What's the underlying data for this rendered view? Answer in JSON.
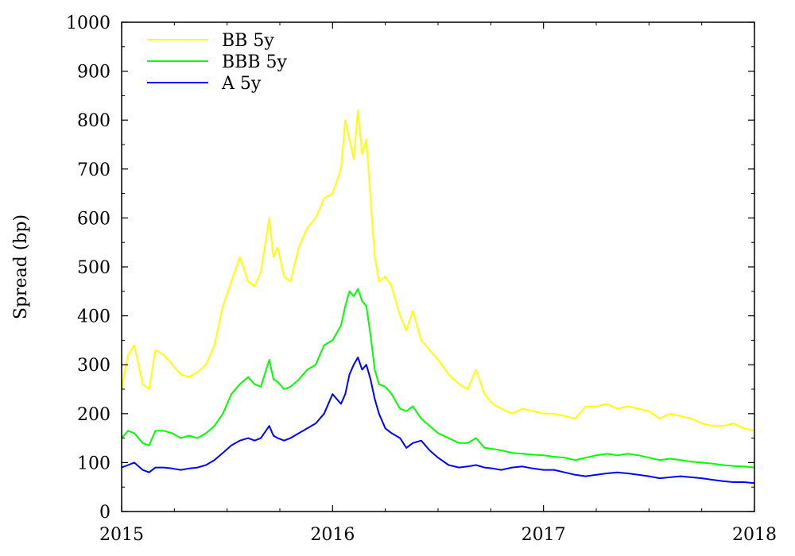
{
  "chart_data": {
    "type": "line",
    "title": "",
    "xlabel": "",
    "ylabel": "Spread (bp)",
    "xlim": [
      2015,
      2018
    ],
    "ylim": [
      0,
      1000
    ],
    "xticks": [
      2015,
      2016,
      2017,
      2018
    ],
    "yticks": [
      0,
      100,
      200,
      300,
      400,
      500,
      600,
      700,
      800,
      900,
      1000
    ],
    "grid": false,
    "legend_position": "top-left",
    "series": [
      {
        "name": "BB 5y",
        "color": "#ffff00",
        "x": [
          2015.0,
          2015.03,
          2015.06,
          2015.1,
          2015.13,
          2015.16,
          2015.2,
          2015.24,
          2015.28,
          2015.32,
          2015.36,
          2015.4,
          2015.44,
          2015.48,
          2015.52,
          2015.56,
          2015.6,
          2015.63,
          2015.66,
          2015.7,
          2015.72,
          2015.74,
          2015.77,
          2015.8,
          2015.84,
          2015.88,
          2015.92,
          2015.96,
          2016.0,
          2016.04,
          2016.06,
          2016.08,
          2016.1,
          2016.12,
          2016.14,
          2016.16,
          2016.18,
          2016.2,
          2016.22,
          2016.25,
          2016.28,
          2016.32,
          2016.35,
          2016.38,
          2016.42,
          2016.46,
          2016.5,
          2016.55,
          2016.6,
          2016.64,
          2016.68,
          2016.72,
          2016.76,
          2016.8,
          2016.85,
          2016.9,
          2016.95,
          2017.0,
          2017.05,
          2017.1,
          2017.15,
          2017.2,
          2017.25,
          2017.3,
          2017.35,
          2017.4,
          2017.45,
          2017.5,
          2017.55,
          2017.6,
          2017.65,
          2017.7,
          2017.75,
          2017.8,
          2017.85,
          2017.9,
          2017.95,
          2018.0
        ],
        "y": [
          250,
          320,
          340,
          260,
          250,
          330,
          320,
          300,
          280,
          275,
          285,
          300,
          340,
          420,
          470,
          520,
          470,
          460,
          490,
          600,
          520,
          540,
          480,
          470,
          540,
          580,
          600,
          640,
          650,
          700,
          800,
          760,
          720,
          820,
          730,
          760,
          640,
          520,
          470,
          480,
          460,
          400,
          370,
          410,
          350,
          330,
          310,
          280,
          260,
          250,
          290,
          240,
          220,
          210,
          200,
          210,
          205,
          200,
          200,
          195,
          190,
          215,
          215,
          220,
          210,
          215,
          210,
          205,
          190,
          200,
          195,
          190,
          180,
          175,
          175,
          180,
          170,
          165
        ]
      },
      {
        "name": "BBB 5y",
        "color": "#00ff00",
        "x": [
          2015.0,
          2015.03,
          2015.06,
          2015.1,
          2015.13,
          2015.16,
          2015.2,
          2015.24,
          2015.28,
          2015.32,
          2015.36,
          2015.4,
          2015.44,
          2015.48,
          2015.52,
          2015.56,
          2015.6,
          2015.63,
          2015.66,
          2015.7,
          2015.72,
          2015.74,
          2015.77,
          2015.8,
          2015.84,
          2015.88,
          2015.92,
          2015.96,
          2016.0,
          2016.04,
          2016.06,
          2016.08,
          2016.1,
          2016.12,
          2016.14,
          2016.16,
          2016.18,
          2016.2,
          2016.22,
          2016.25,
          2016.28,
          2016.32,
          2016.35,
          2016.38,
          2016.42,
          2016.46,
          2016.5,
          2016.55,
          2016.6,
          2016.64,
          2016.68,
          2016.72,
          2016.76,
          2016.8,
          2016.85,
          2016.9,
          2016.95,
          2017.0,
          2017.05,
          2017.1,
          2017.15,
          2017.2,
          2017.25,
          2017.3,
          2017.35,
          2017.4,
          2017.45,
          2017.5,
          2017.55,
          2017.6,
          2017.65,
          2017.7,
          2017.75,
          2017.8,
          2017.85,
          2017.9,
          2017.95,
          2018.0
        ],
        "y": [
          150,
          165,
          160,
          140,
          135,
          165,
          165,
          160,
          150,
          155,
          150,
          160,
          175,
          200,
          240,
          260,
          275,
          260,
          255,
          310,
          270,
          265,
          250,
          255,
          270,
          290,
          300,
          340,
          350,
          380,
          420,
          450,
          440,
          455,
          430,
          420,
          360,
          290,
          260,
          255,
          240,
          210,
          205,
          215,
          190,
          175,
          160,
          150,
          140,
          140,
          150,
          130,
          128,
          125,
          120,
          118,
          116,
          115,
          112,
          110,
          105,
          110,
          115,
          118,
          115,
          118,
          115,
          110,
          105,
          108,
          105,
          102,
          100,
          98,
          95,
          93,
          92,
          90
        ]
      },
      {
        "name": "A 5y",
        "color": "#0000ff",
        "x": [
          2015.0,
          2015.03,
          2015.06,
          2015.1,
          2015.13,
          2015.16,
          2015.2,
          2015.24,
          2015.28,
          2015.32,
          2015.36,
          2015.4,
          2015.44,
          2015.48,
          2015.52,
          2015.56,
          2015.6,
          2015.63,
          2015.66,
          2015.7,
          2015.72,
          2015.74,
          2015.77,
          2015.8,
          2015.84,
          2015.88,
          2015.92,
          2015.96,
          2016.0,
          2016.04,
          2016.06,
          2016.08,
          2016.1,
          2016.12,
          2016.14,
          2016.16,
          2016.18,
          2016.2,
          2016.22,
          2016.25,
          2016.28,
          2016.32,
          2016.35,
          2016.38,
          2016.42,
          2016.46,
          2016.5,
          2016.55,
          2016.6,
          2016.64,
          2016.68,
          2016.72,
          2016.76,
          2016.8,
          2016.85,
          2016.9,
          2016.95,
          2017.0,
          2017.05,
          2017.1,
          2017.15,
          2017.2,
          2017.25,
          2017.3,
          2017.35,
          2017.4,
          2017.45,
          2017.5,
          2017.55,
          2017.6,
          2017.65,
          2017.7,
          2017.75,
          2017.8,
          2017.85,
          2017.9,
          2017.95,
          2018.0
        ],
        "y": [
          90,
          95,
          100,
          85,
          80,
          90,
          90,
          88,
          85,
          88,
          90,
          95,
          105,
          120,
          135,
          145,
          150,
          145,
          150,
          175,
          155,
          150,
          145,
          150,
          160,
          170,
          180,
          200,
          240,
          220,
          240,
          280,
          300,
          315,
          290,
          300,
          270,
          230,
          200,
          170,
          160,
          150,
          130,
          140,
          145,
          125,
          110,
          95,
          90,
          92,
          95,
          90,
          88,
          85,
          90,
          92,
          88,
          85,
          85,
          80,
          75,
          72,
          75,
          78,
          80,
          78,
          75,
          72,
          68,
          70,
          72,
          70,
          68,
          65,
          62,
          60,
          60,
          58
        ]
      }
    ]
  }
}
